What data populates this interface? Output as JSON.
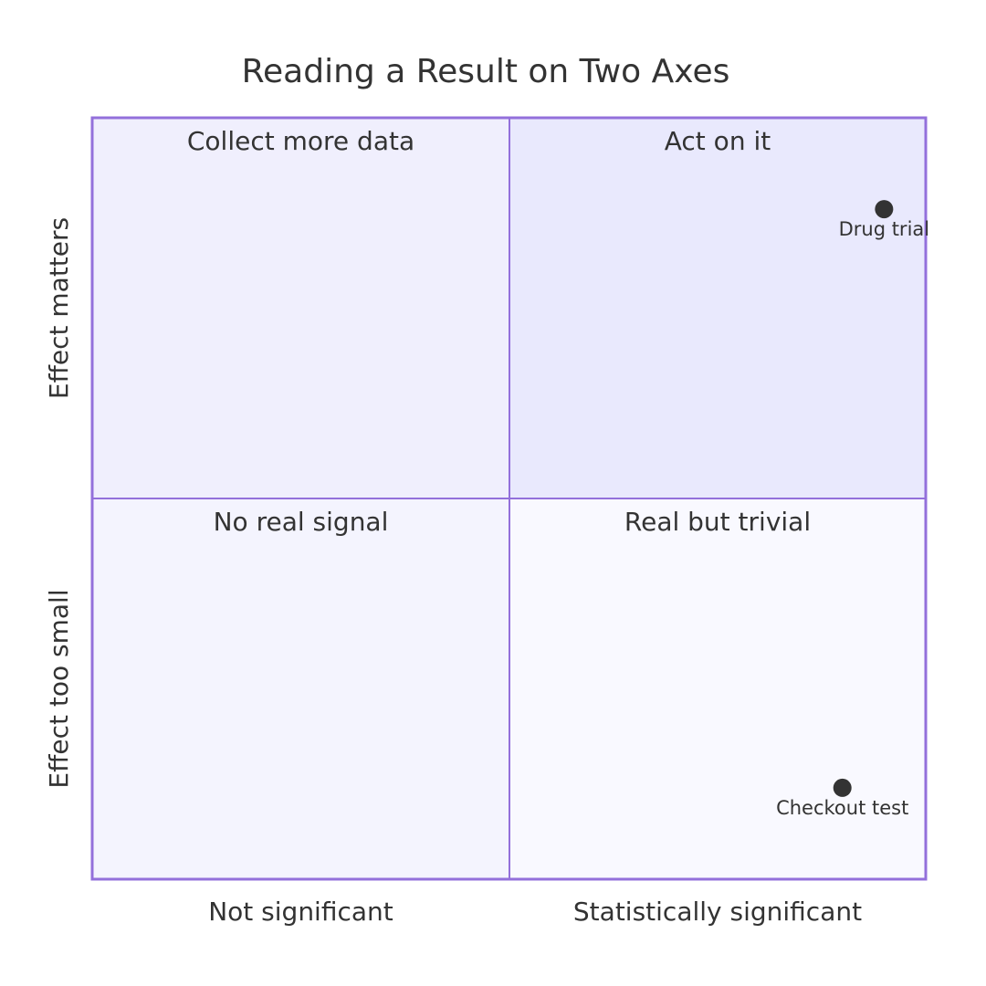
{
  "chart_data": {
    "type": "quadrant",
    "title": "Reading a Result on Two Axes",
    "x_axis": {
      "low_label": "Not significant",
      "high_label": "Statistically significant"
    },
    "y_axis": {
      "low_label": "Effect too small",
      "high_label": "Effect matters"
    },
    "quadrants": {
      "top_left": "Collect more data",
      "top_right": "Act on it",
      "bottom_left": "No real signal",
      "bottom_right": "Real but trivial"
    },
    "points": [
      {
        "label": "Drug trial",
        "x": 0.95,
        "y": 0.88
      },
      {
        "label": "Checkout test",
        "x": 0.9,
        "y": 0.12
      }
    ],
    "xlim": [
      0,
      1
    ],
    "ylim": [
      0,
      1
    ]
  },
  "colors": {
    "border": "#9370db",
    "divider": "#9370db",
    "top_left_fill": "#f0effd",
    "top_right_fill": "#e9e9fd",
    "bottom_left_fill": "#f4f4fe",
    "bottom_right_fill": "#f9f9ff",
    "text": "#333333",
    "point": "#333333"
  }
}
